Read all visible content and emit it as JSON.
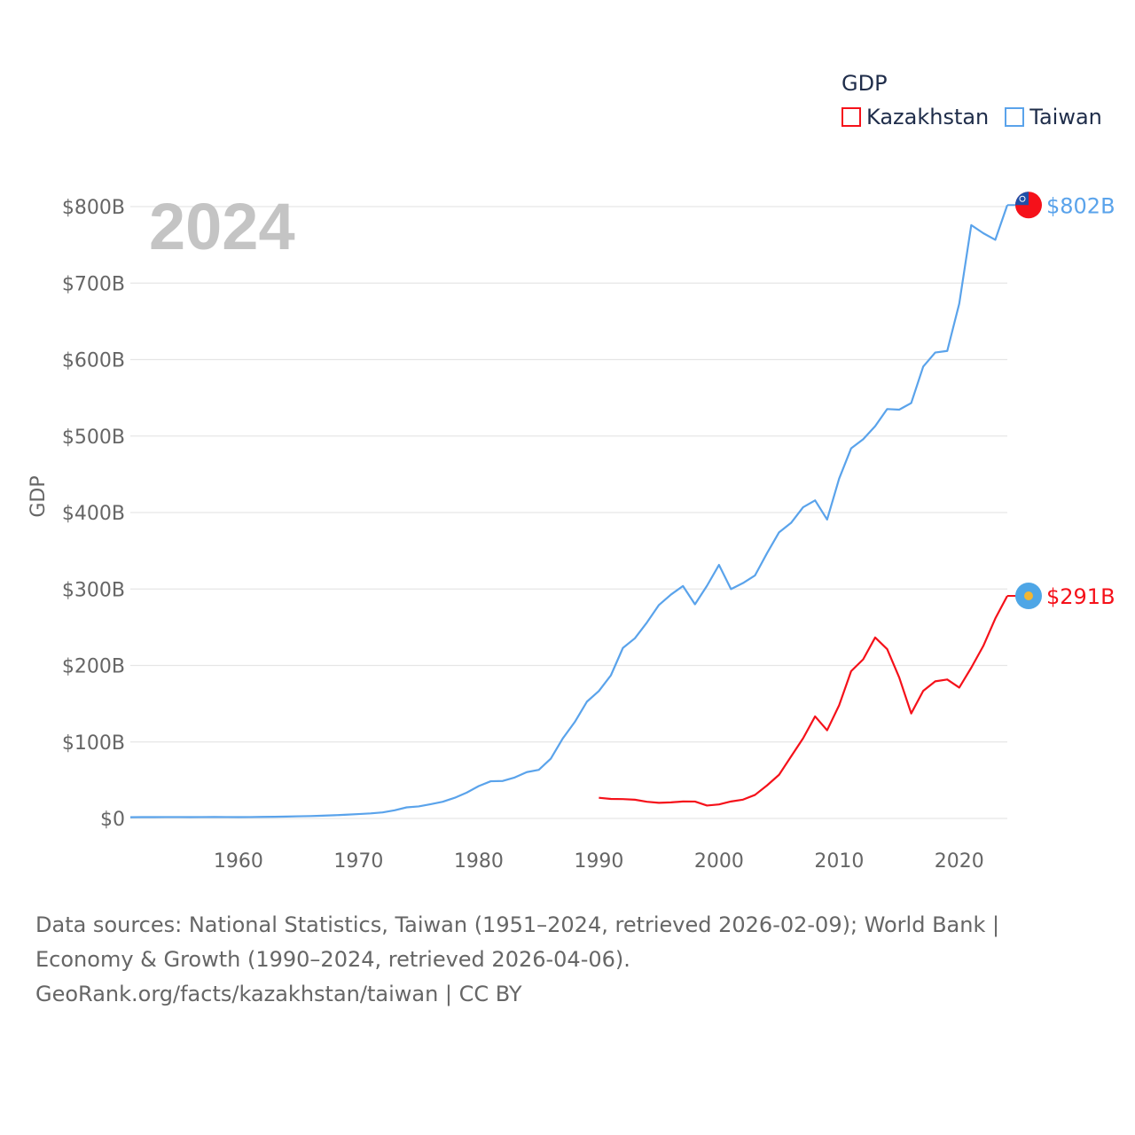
{
  "chart_data": {
    "type": "line",
    "year_label": "2024",
    "ylabel": "GDP",
    "xlabel": "",
    "xlim": [
      1951,
      2024
    ],
    "ylim": [
      0,
      800
    ],
    "x_ticks": [
      1960,
      1970,
      1980,
      1990,
      2000,
      2010,
      2020
    ],
    "x_tick_labels": [
      "1960",
      "1970",
      "1980",
      "1990",
      "2000",
      "2010",
      "2020"
    ],
    "y_ticks": [
      0,
      100,
      200,
      300,
      400,
      500,
      600,
      700,
      800
    ],
    "y_tick_labels": [
      "$0",
      "$100B",
      "$200B",
      "$300B",
      "$400B",
      "$500B",
      "$600B",
      "$700B",
      "$800B"
    ],
    "grid": true,
    "legend": {
      "title": "GDP",
      "placement": "top-right"
    },
    "series": [
      {
        "name": "Kazakhstan",
        "color": "#f5111a",
        "start_year": 1990,
        "end_label": "$291B",
        "values": [
          27.0,
          25.5,
          25.3,
          24.5,
          21.8,
          20.4,
          21.0,
          22.2,
          22.1,
          16.9,
          18.3,
          22.2,
          24.6,
          30.8,
          43.2,
          57.1,
          81.0,
          104.8,
          133.4,
          115.3,
          148.0,
          192.6,
          208.0,
          236.6,
          221.4,
          184.4,
          137.3,
          166.8,
          179.3,
          181.7,
          171.1,
          197.1,
          225.5,
          261.4,
          291.0
        ]
      },
      {
        "name": "Taiwan",
        "color": "#5aa3eb",
        "start_year": 1951,
        "end_label": "$802B",
        "values": [
          1.6,
          1.7,
          1.7,
          1.8,
          1.8,
          1.7,
          1.8,
          1.9,
          1.8,
          1.7,
          1.8,
          2.0,
          2.2,
          2.5,
          2.8,
          3.1,
          3.6,
          4.2,
          4.9,
          5.7,
          6.6,
          7.9,
          10.7,
          14.5,
          15.7,
          18.6,
          21.8,
          27.0,
          33.8,
          42.3,
          48.6,
          49.0,
          53.6,
          60.6,
          63.6,
          78.2,
          104.7,
          126.2,
          152.6,
          166.6,
          187.1,
          222.9,
          235.6,
          256.2,
          279.1,
          292.7,
          303.9,
          280.0,
          304.2,
          331.5,
          299.9,
          307.8,
          317.8,
          346.9,
          374.1,
          386.5,
          406.9,
          415.9,
          390.8,
          444.3,
          483.9,
          495.8,
          512.9,
          535.3,
          534.5,
          543.1,
          590.8,
          609.2,
          611.3,
          673.2,
          775.8,
          765.2,
          756.6,
          802.0
        ]
      }
    ]
  },
  "footer": {
    "sources": "Data sources: National Statistics, Taiwan (1951–2024, retrieved 2026-02-09); World Bank | Economy & Growth (1990–2024, retrieved 2026-04-06).",
    "attribution": "GeoRank.org/facts/kazakhstan/taiwan | CC BY"
  }
}
